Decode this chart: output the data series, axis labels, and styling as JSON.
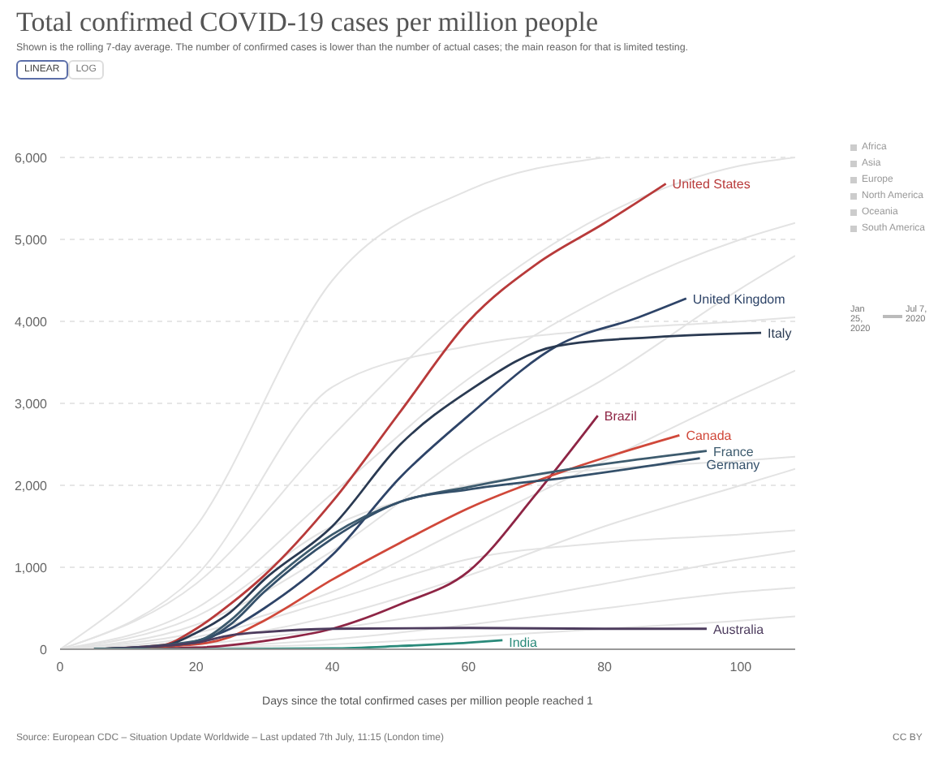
{
  "chart_data": {
    "type": "line",
    "title": "Total confirmed COVID-19 cases per million people",
    "subtitle": "Shown is the rolling 7-day average. The number of confirmed cases is lower than the number of actual cases; the main reason for that is limited testing.",
    "xlabel": "Days since the total confirmed cases per million people reached 1",
    "xlim": [
      0,
      108
    ],
    "xticks": [
      0,
      20,
      40,
      60,
      80,
      100
    ],
    "ylim": [
      0,
      6000
    ],
    "yticks": [
      0,
      {
        "value": 1000,
        "label": "1,000"
      },
      {
        "value": 2000,
        "label": "2,000"
      },
      {
        "value": 3000,
        "label": "3,000"
      },
      {
        "value": 4000,
        "label": "4,000"
      },
      {
        "value": 5000,
        "label": "5,000"
      },
      {
        "value": 6000,
        "label": "6,000"
      }
    ],
    "grid": "y",
    "legend": false,
    "marker": "none",
    "line_style": "solid",
    "series": [
      {
        "color": "#e3e3e3",
        "x": [
          0,
          20,
          40,
          60,
          80,
          100,
          108
        ],
        "values": [
          0,
          800,
          2600,
          4200,
          5300,
          5900,
          6000
        ]
      },
      {
        "color": "#e3e3e3",
        "x": [
          0,
          20,
          40,
          60,
          80,
          100,
          108
        ],
        "values": [
          0,
          500,
          1900,
          3300,
          4300,
          5000,
          5200
        ]
      },
      {
        "color": "#e3e3e3",
        "x": [
          0,
          20,
          40,
          60,
          80,
          100,
          108
        ],
        "values": [
          0,
          900,
          3200,
          3700,
          3900,
          4000,
          4050
        ]
      },
      {
        "color": "#e3e3e3",
        "x": [
          0,
          20,
          40,
          60,
          80,
          100,
          108
        ],
        "values": [
          0,
          300,
          1200,
          2400,
          3300,
          4400,
          4800
        ]
      },
      {
        "color": "#e3e3e3",
        "x": [
          0,
          20,
          40,
          60,
          80,
          100,
          108
        ],
        "values": [
          0,
          200,
          700,
          1500,
          2300,
          3100,
          3400
        ]
      },
      {
        "color": "#e3e3e3",
        "x": [
          0,
          20,
          40,
          60,
          80,
          100,
          108
        ],
        "values": [
          0,
          400,
          1500,
          2000,
          2200,
          2300,
          2350
        ]
      },
      {
        "color": "#e3e3e3",
        "x": [
          0,
          20,
          40,
          60,
          80,
          100,
          108
        ],
        "values": [
          0,
          100,
          400,
          900,
          1500,
          2000,
          2200
        ]
      },
      {
        "color": "#e3e3e3",
        "x": [
          0,
          20,
          40,
          60,
          80,
          100,
          108
        ],
        "values": [
          0,
          150,
          600,
          1100,
          1300,
          1400,
          1450
        ]
      },
      {
        "color": "#e3e3e3",
        "x": [
          0,
          20,
          40,
          60,
          80,
          100,
          108
        ],
        "values": [
          0,
          60,
          250,
          500,
          800,
          1100,
          1200
        ]
      },
      {
        "color": "#e3e3e3",
        "x": [
          0,
          20,
          40,
          60,
          80,
          100,
          108
        ],
        "values": [
          0,
          30,
          120,
          300,
          500,
          700,
          750
        ]
      },
      {
        "color": "#e3e3e3",
        "x": [
          0,
          20,
          40,
          60,
          80
        ],
        "values": [
          0,
          1500,
          4500,
          5600,
          6000
        ]
      },
      {
        "color": "#e3e3e3",
        "x": [
          0,
          20,
          40,
          60,
          80,
          100,
          108
        ],
        "values": [
          0,
          20,
          60,
          150,
          250,
          350,
          400
        ]
      },
      {
        "name": "United States",
        "color": "#b83a3a",
        "x": [
          5,
          15,
          20,
          25,
          30,
          40,
          50,
          60,
          70,
          80,
          89
        ],
        "values": [
          0,
          50,
          250,
          550,
          900,
          1800,
          2900,
          4000,
          4700,
          5200,
          5680
        ]
      },
      {
        "name": "United Kingdom",
        "color": "#2e4468",
        "x": [
          5,
          15,
          20,
          25,
          30,
          40,
          50,
          60,
          73,
          85,
          92
        ],
        "values": [
          0,
          20,
          100,
          250,
          500,
          1150,
          2100,
          2850,
          3700,
          4050,
          4280
        ]
      },
      {
        "name": "Italy",
        "color": "#2a3a52",
        "x": [
          5,
          15,
          20,
          25,
          30,
          40,
          50,
          60,
          73,
          90,
          103
        ],
        "values": [
          0,
          40,
          200,
          450,
          850,
          1500,
          2500,
          3150,
          3700,
          3820,
          3860
        ]
      },
      {
        "name": "Brazil",
        "color": "#8e2545",
        "x": [
          5,
          20,
          30,
          40,
          50,
          60,
          70,
          79
        ],
        "values": [
          0,
          20,
          100,
          250,
          550,
          950,
          1900,
          2850
        ]
      },
      {
        "name": "Canada",
        "color": "#d0483a",
        "x": [
          5,
          20,
          25,
          30,
          40,
          50,
          60,
          75,
          91
        ],
        "values": [
          0,
          60,
          150,
          350,
          850,
          1300,
          1720,
          2200,
          2610
        ]
      },
      {
        "name": "France",
        "color": "#3d5b6e",
        "x": [
          5,
          20,
          25,
          30,
          40,
          50,
          60,
          75,
          95
        ],
        "values": [
          0,
          100,
          350,
          750,
          1400,
          1800,
          1980,
          2200,
          2420
        ]
      },
      {
        "name": "Germany",
        "color": "#34506a",
        "x": [
          5,
          20,
          25,
          30,
          40,
          50,
          60,
          75,
          94
        ],
        "values": [
          0,
          80,
          300,
          700,
          1350,
          1800,
          1950,
          2100,
          2330
        ]
      },
      {
        "name": "Australia",
        "color": "#4d3c5e",
        "x": [
          5,
          20,
          25,
          30,
          40,
          60,
          80,
          95
        ],
        "values": [
          0,
          80,
          170,
          210,
          250,
          260,
          250,
          250
        ]
      },
      {
        "name": "India",
        "color": "#2a8a7a",
        "x": [
          5,
          20,
          40,
          50,
          60,
          65
        ],
        "values": [
          0,
          0,
          10,
          40,
          80,
          110
        ]
      }
    ],
    "annotations": [
      "LINEAR",
      "LOG",
      "Africa",
      "Asia",
      "Europe",
      "North America",
      "Oceania",
      "South America",
      "Jan 25, 2020",
      "Jul 7, 2020",
      "Source: European CDC – Situation Update Worldwide – Last updated 7th July, 11:15 (London time)",
      "CC BY"
    ]
  }
}
